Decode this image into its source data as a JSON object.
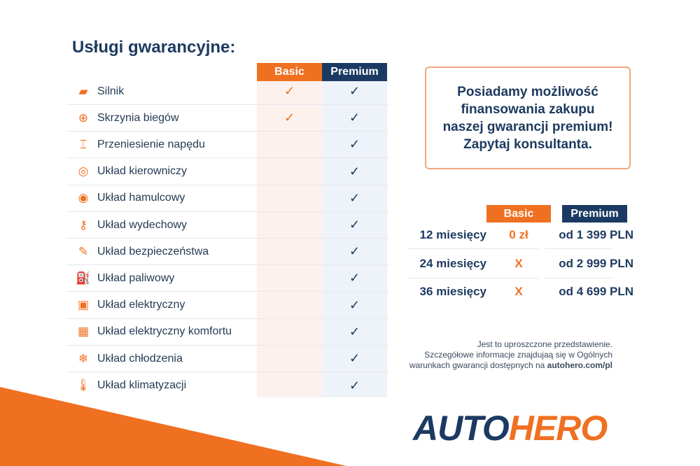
{
  "title": "Usługi gwarancyjne:",
  "coverage": {
    "headers": {
      "basic": "Basic",
      "premium": "Premium"
    },
    "items": [
      {
        "label": "Silnik",
        "icon": "engine-icon",
        "basic": "✓",
        "premium": "✓"
      },
      {
        "label": "Skrzynia biegów",
        "icon": "gearbox-icon",
        "basic": "✓",
        "premium": "✓"
      },
      {
        "label": "Przeniesienie napędu",
        "icon": "drivetrain-icon",
        "basic": "",
        "premium": "✓"
      },
      {
        "label": "Układ kierowniczy",
        "icon": "steering-wheel-icon",
        "basic": "",
        "premium": "✓"
      },
      {
        "label": "Układ hamulcowy",
        "icon": "brake-icon",
        "basic": "",
        "premium": "✓"
      },
      {
        "label": "Układ wydechowy",
        "icon": "exhaust-icon",
        "basic": "",
        "premium": "✓"
      },
      {
        "label": "Układ bezpieczeństwa",
        "icon": "airbag-icon",
        "basic": "",
        "premium": "✓"
      },
      {
        "label": "Układ paliwowy",
        "icon": "fuel-icon",
        "basic": "",
        "premium": "✓"
      },
      {
        "label": "Układ elektryczny",
        "icon": "battery-icon",
        "basic": "",
        "premium": "✓"
      },
      {
        "label": "Układ elektryczny komfortu",
        "icon": "chip-icon",
        "basic": "",
        "premium": "✓"
      },
      {
        "label": "Układ chłodzenia",
        "icon": "snowflake-icon",
        "basic": "",
        "premium": "✓"
      },
      {
        "label": "Układ klimatyzacji",
        "icon": "thermometer-icon",
        "basic": "",
        "premium": "✓"
      }
    ]
  },
  "promo": {
    "lines": [
      "Posiadamy możliwość",
      "finansowania zakupu",
      "naszej gwarancji premium!",
      "Zapytaj konsultanta."
    ]
  },
  "pricing": {
    "headers": {
      "basic": "Basic",
      "premium": "Premium"
    },
    "rows": [
      {
        "months": "12 miesięcy",
        "basic": "0 zł",
        "premium": "od 1 399 PLN"
      },
      {
        "months": "24 miesięcy",
        "basic": "X",
        "premium": "od 2 999 PLN"
      },
      {
        "months": "36 miesięcy",
        "basic": "X",
        "premium": "od 4 699 PLN"
      }
    ]
  },
  "note": {
    "line1": "Jest to uproszczone przedstawienie.",
    "line2": "Szczegółowe informacje znajdujaą się w Ogólnych",
    "line3": "warunkach gwarancji dostępnych na ",
    "link": "autohero.com/pl"
  },
  "logo": {
    "part1": "AUTO",
    "part2": "HERO"
  },
  "colors": {
    "orange": "#f07022",
    "navy": "#1b3a63"
  }
}
